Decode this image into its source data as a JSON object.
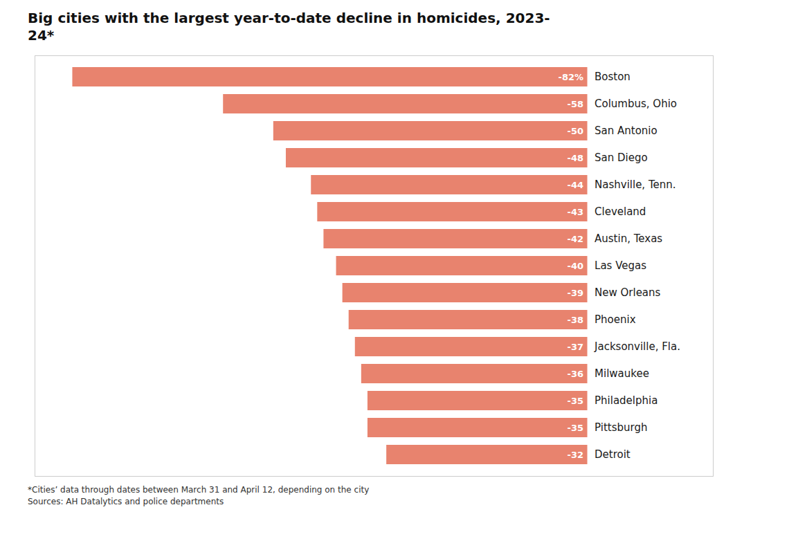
{
  "chart_data": {
    "type": "bar",
    "orientation": "horizontal",
    "title": "Big cities with the largest year-to-date decline in homicides, 2023-\n24*",
    "categories": [
      "Boston",
      "Columbus, Ohio",
      "San Antonio",
      "San Diego",
      "Nashville, Tenn.",
      "Cleveland",
      "Austin, Texas",
      "Las Vegas",
      "New Orleans",
      "Phoenix",
      "Jacksonville, Fla.",
      "Milwaukee",
      "Philadelphia",
      "Pittsburgh",
      "Detroit"
    ],
    "values": [
      -82,
      -58,
      -50,
      -48,
      -44,
      -43,
      -42,
      -40,
      -39,
      -38,
      -37,
      -36,
      -35,
      -35,
      -32
    ],
    "value_labels": [
      "-82%",
      "-58",
      "-50",
      "-48",
      "-44",
      "-43",
      "-42",
      "-40",
      "-39",
      "-38",
      "-37",
      "-36",
      "-35",
      "-35",
      "-32"
    ],
    "data_labels": true,
    "color": "#E8836E",
    "xlim": [
      -88,
      20
    ],
    "tick_labels": "y",
    "grid": false,
    "annotations": [
      "*Cities’ data through dates between March 31 and April 12, depending on the city",
      "Sources: AH Datalytics and police departments"
    ]
  }
}
